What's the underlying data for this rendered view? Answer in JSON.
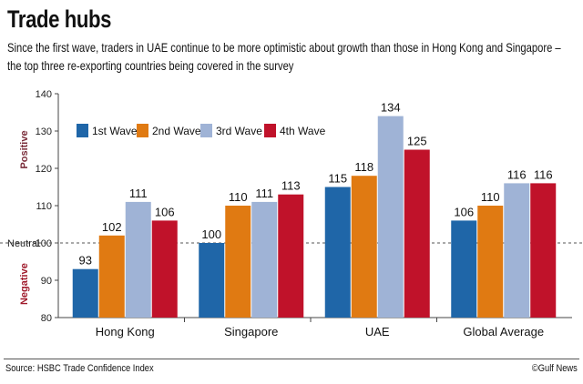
{
  "title": "Trade hubs",
  "subtitle": "Since the first wave, traders in UAE continue to be more optimistic about growth than those in Hong Kong and Singapore – the top three re-exporting countries being covered in the survey",
  "source": "Source: HSBC Trade Confidence Index",
  "credit": "©Gulf News",
  "labels": {
    "positive": "Positive",
    "negative": "Negative",
    "neutral": "Neutral"
  },
  "colors": {
    "positive": "#7a2d3a",
    "negative": "#a01b2c",
    "axis": "#444444"
  },
  "chart_data": {
    "type": "bar",
    "title": "Trade hubs",
    "categories": [
      "Hong Kong",
      "Singapore",
      "UAE",
      "Global Average"
    ],
    "series": [
      {
        "name": "1st Wave",
        "color": "#1f66a8",
        "values": [
          93,
          100,
          115,
          106
        ]
      },
      {
        "name": "2nd Wave",
        "color": "#e07a12",
        "values": [
          102,
          110,
          118,
          110
        ]
      },
      {
        "name": "3rd Wave",
        "color": "#9fb3d6",
        "values": [
          111,
          111,
          134,
          116
        ]
      },
      {
        "name": "4th Wave",
        "color": "#c0122a",
        "values": [
          106,
          113,
          125,
          116
        ]
      }
    ],
    "ylim": [
      80,
      140
    ],
    "yticks": [
      80,
      90,
      100,
      110,
      120,
      130,
      140
    ],
    "neutral_value": 100,
    "xlabel": "",
    "ylabel": "",
    "legend": "top-left",
    "grid": false
  }
}
